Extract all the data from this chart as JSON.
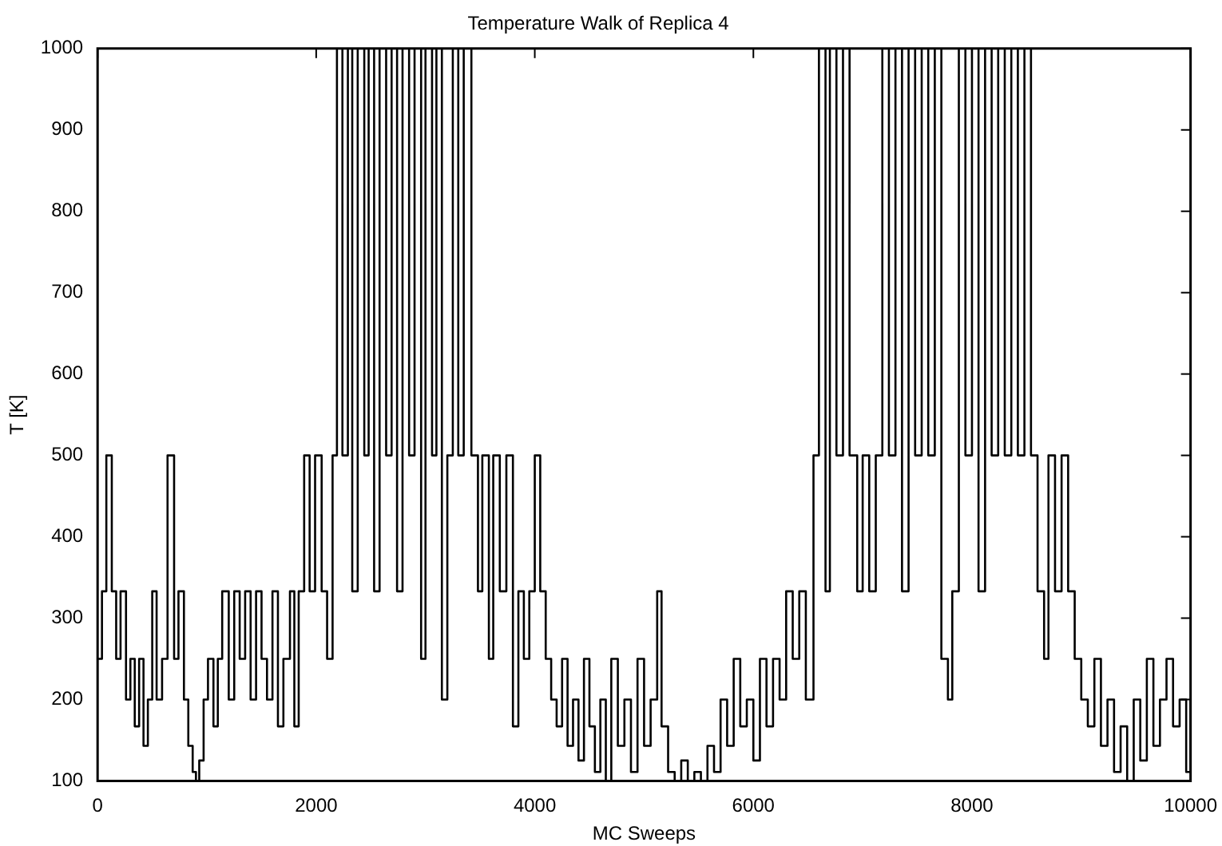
{
  "chart_data": {
    "type": "step",
    "title": "Temperature Walk of Replica 4",
    "xlabel": "MC Sweeps",
    "ylabel": "T [K]",
    "xlim": [
      0,
      10000
    ],
    "xticks": [
      0,
      2000,
      4000,
      6000,
      8000,
      10000
    ],
    "ylim": [
      100,
      1000
    ],
    "yticks": [
      100,
      200,
      300,
      400,
      500,
      600,
      700,
      800,
      900,
      1000
    ],
    "grid": false,
    "marker": "none",
    "line_style": "solid",
    "series": [
      {
        "color": "#000000",
        "x": [
          0,
          40,
          80,
          130,
          170,
          210,
          260,
          300,
          340,
          380,
          420,
          460,
          500,
          540,
          590,
          640,
          700,
          740,
          790,
          830,
          870,
          900,
          930,
          970,
          1010,
          1060,
          1100,
          1140,
          1200,
          1250,
          1300,
          1350,
          1400,
          1450,
          1500,
          1550,
          1600,
          1650,
          1700,
          1760,
          1800,
          1840,
          1890,
          1940,
          1990,
          2050,
          2100,
          2150,
          2190,
          2240,
          2290,
          2330,
          2380,
          2440,
          2480,
          2530,
          2580,
          2640,
          2690,
          2740,
          2790,
          2850,
          2900,
          2960,
          3000,
          3060,
          3100,
          3150,
          3200,
          3250,
          3300,
          3350,
          3420,
          3480,
          3520,
          3580,
          3620,
          3680,
          3740,
          3800,
          3850,
          3900,
          3950,
          4000,
          4050,
          4100,
          4150,
          4200,
          4250,
          4300,
          4350,
          4400,
          4450,
          4500,
          4550,
          4600,
          4650,
          4700,
          4760,
          4820,
          4880,
          4940,
          5000,
          5060,
          5120,
          5160,
          5220,
          5280,
          5340,
          5400,
          5460,
          5520,
          5580,
          5640,
          5700,
          5760,
          5820,
          5880,
          5940,
          6000,
          6060,
          6120,
          6180,
          6240,
          6300,
          6360,
          6420,
          6480,
          6550,
          6600,
          6660,
          6700,
          6760,
          6820,
          6880,
          6950,
          7000,
          7060,
          7120,
          7180,
          7240,
          7300,
          7360,
          7420,
          7480,
          7540,
          7600,
          7660,
          7720,
          7780,
          7820,
          7880,
          7940,
          8000,
          8060,
          8120,
          8180,
          8240,
          8300,
          8360,
          8420,
          8480,
          8540,
          8600,
          8660,
          8700,
          8760,
          8820,
          8880,
          8940,
          9000,
          9060,
          9120,
          9180,
          9240,
          9300,
          9360,
          9420,
          9480,
          9540,
          9600,
          9660,
          9720,
          9780,
          9840,
          9900,
          9960,
          10000
        ],
        "values": [
          250,
          333,
          500,
          333,
          250,
          333,
          200,
          250,
          167,
          250,
          143,
          200,
          333,
          200,
          250,
          500,
          250,
          333,
          200,
          143,
          111,
          100,
          125,
          200,
          250,
          167,
          250,
          333,
          200,
          333,
          250,
          333,
          200,
          333,
          250,
          200,
          333,
          167,
          250,
          333,
          167,
          333,
          500,
          333,
          500,
          333,
          250,
          500,
          1000,
          500,
          1000,
          333,
          1000,
          500,
          1000,
          333,
          1000,
          500,
          1000,
          333,
          1000,
          500,
          1000,
          250,
          1000,
          500,
          1000,
          200,
          500,
          1000,
          500,
          1000,
          500,
          333,
          500,
          250,
          500,
          333,
          500,
          167,
          333,
          250,
          333,
          500,
          333,
          250,
          200,
          167,
          250,
          143,
          200,
          125,
          250,
          167,
          111,
          200,
          100,
          250,
          143,
          200,
          111,
          250,
          143,
          200,
          333,
          167,
          111,
          100,
          125,
          100,
          111,
          100,
          143,
          111,
          200,
          143,
          250,
          167,
          200,
          125,
          250,
          167,
          250,
          200,
          333,
          250,
          333,
          200,
          500,
          1000,
          333,
          1000,
          500,
          1000,
          500,
          333,
          500,
          333,
          500,
          1000,
          500,
          1000,
          333,
          1000,
          500,
          1000,
          500,
          1000,
          250,
          200,
          333,
          1000,
          500,
          1000,
          333,
          1000,
          500,
          1000,
          500,
          1000,
          500,
          1000,
          500,
          333,
          250,
          500,
          333,
          500,
          333,
          250,
          200,
          167,
          250,
          143,
          200,
          111,
          167,
          100,
          200,
          125,
          250,
          143,
          200,
          250,
          167,
          200,
          111,
          200
        ]
      }
    ]
  }
}
